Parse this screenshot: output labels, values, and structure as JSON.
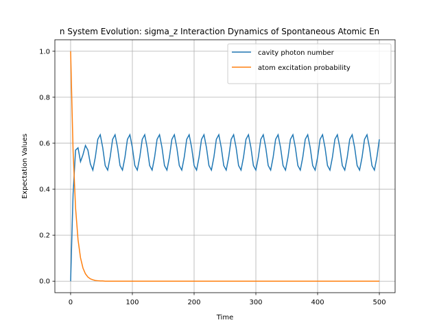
{
  "chart_data": {
    "type": "line",
    "title": "n System Evolution: sigma_z Interaction Dynamics of Spontaneous Atomic En",
    "xlabel": "Time",
    "ylabel": "Expectation Values",
    "x": [
      0,
      4,
      8,
      12,
      16,
      20,
      24,
      28,
      32,
      36,
      40,
      44,
      48,
      52,
      56,
      60,
      64,
      68,
      72,
      76,
      80,
      84,
      88,
      92,
      96,
      100,
      104,
      108,
      112,
      116,
      120,
      124,
      128,
      132,
      136,
      140,
      144,
      148,
      152,
      156,
      160,
      164,
      168,
      172,
      176,
      180,
      184,
      188,
      192,
      196,
      200,
      204,
      208,
      212,
      216,
      220,
      224,
      228,
      232,
      236,
      240,
      244,
      248,
      252,
      256,
      260,
      264,
      268,
      272,
      276,
      280,
      284,
      288,
      292,
      296,
      300,
      304,
      308,
      312,
      316,
      320,
      324,
      328,
      332,
      336,
      340,
      344,
      348,
      352,
      356,
      360,
      364,
      368,
      372,
      376,
      380,
      384,
      388,
      392,
      396,
      400,
      404,
      408,
      412,
      416,
      420,
      424,
      428,
      432,
      436,
      440,
      444,
      448,
      452,
      456,
      460,
      464,
      468,
      472,
      476,
      480,
      484,
      488,
      492,
      496,
      500
    ],
    "series": [
      {
        "name": "cavity photon number",
        "color": "#1f77b4",
        "values": [
          0,
          0.38,
          0.57,
          0.58,
          0.52,
          0.55,
          0.59,
          0.57,
          0.51,
          0.483,
          0.539,
          0.617,
          0.637,
          0.581,
          0.503,
          0.483,
          0.539,
          0.617,
          0.637,
          0.581,
          0.503,
          0.483,
          0.539,
          0.617,
          0.637,
          0.581,
          0.503,
          0.483,
          0.539,
          0.617,
          0.637,
          0.581,
          0.503,
          0.483,
          0.539,
          0.617,
          0.637,
          0.581,
          0.503,
          0.483,
          0.539,
          0.617,
          0.637,
          0.581,
          0.503,
          0.483,
          0.539,
          0.617,
          0.637,
          0.581,
          0.503,
          0.483,
          0.539,
          0.617,
          0.637,
          0.581,
          0.503,
          0.483,
          0.539,
          0.617,
          0.637,
          0.581,
          0.503,
          0.483,
          0.539,
          0.617,
          0.637,
          0.581,
          0.503,
          0.483,
          0.539,
          0.617,
          0.637,
          0.581,
          0.503,
          0.483,
          0.539,
          0.617,
          0.637,
          0.581,
          0.503,
          0.483,
          0.539,
          0.617,
          0.637,
          0.581,
          0.503,
          0.483,
          0.539,
          0.617,
          0.637,
          0.581,
          0.503,
          0.483,
          0.539,
          0.617,
          0.637,
          0.581,
          0.503,
          0.483,
          0.539,
          0.617,
          0.637,
          0.581,
          0.503,
          0.483,
          0.539,
          0.617,
          0.637,
          0.581,
          0.503,
          0.483,
          0.539,
          0.617,
          0.637,
          0.581,
          0.503,
          0.483,
          0.539,
          0.617,
          0.637,
          0.581,
          0.503,
          0.483,
          0.539,
          0.617
        ]
      },
      {
        "name": "atom excitation probability",
        "color": "#ff7f0e",
        "values": [
          1,
          0.565,
          0.319,
          0.18,
          0.102,
          0.057,
          0.032,
          0.018,
          0.01,
          0.006,
          0.003,
          0.002,
          0.001,
          0.001,
          0,
          0,
          0,
          0,
          0,
          0,
          0,
          0,
          0,
          0,
          0,
          0,
          0,
          0,
          0,
          0,
          0,
          0,
          0,
          0,
          0,
          0,
          0,
          0,
          0,
          0,
          0,
          0,
          0,
          0,
          0,
          0,
          0,
          0,
          0,
          0,
          0,
          0,
          0,
          0,
          0,
          0,
          0,
          0,
          0,
          0,
          0,
          0,
          0,
          0,
          0,
          0,
          0,
          0,
          0,
          0,
          0,
          0,
          0,
          0,
          0,
          0,
          0,
          0,
          0,
          0,
          0,
          0,
          0,
          0,
          0,
          0,
          0,
          0,
          0,
          0,
          0,
          0,
          0,
          0,
          0,
          0,
          0,
          0,
          0,
          0,
          0,
          0,
          0,
          0,
          0,
          0,
          0,
          0,
          0,
          0,
          0,
          0,
          0,
          0,
          0,
          0,
          0,
          0,
          0,
          0,
          0,
          0,
          0,
          0,
          0,
          0
        ]
      }
    ],
    "xlim": [
      -25.5,
      525.5
    ],
    "ylim": [
      -0.05,
      1.05
    ],
    "xticks": [
      0,
      100,
      200,
      300,
      400,
      500
    ],
    "yticks": [
      {
        "value": 0,
        "label": "0.0"
      },
      0.2,
      0.4,
      0.6,
      0.8,
      {
        "value": 1,
        "label": "1.0"
      }
    ],
    "grid": true,
    "legend": "upper right"
  }
}
